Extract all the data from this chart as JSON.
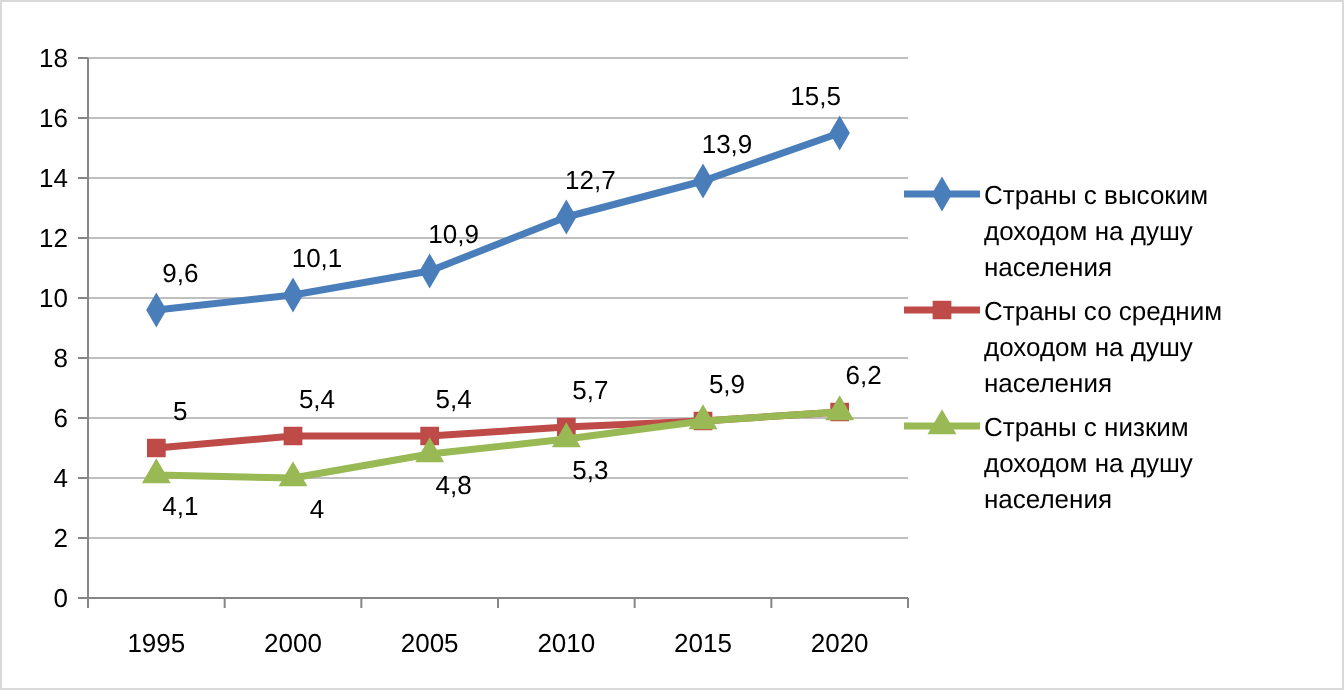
{
  "chart_data": {
    "type": "line",
    "categories": [
      "1995",
      "2000",
      "2005",
      "2010",
      "2015",
      "2020"
    ],
    "ylim": [
      0,
      18
    ],
    "yticks": [
      0,
      2,
      4,
      6,
      8,
      10,
      12,
      14,
      16,
      18
    ],
    "grid": "y",
    "legend": "right",
    "line_style": "solid",
    "series": [
      {
        "name": "Страны с высоким доходом на душу населения",
        "color": "#4a7ebb",
        "marker": "diamond",
        "values": [
          9.6,
          10.1,
          10.9,
          12.7,
          13.9,
          15.5
        ],
        "value_labels": [
          "9,6",
          "10,1",
          "10,9",
          "12,7",
          "13,9",
          "15,5"
        ]
      },
      {
        "name": "Страны со средним доходом на душу населения",
        "color": "#be4b48",
        "marker": "square",
        "values": [
          5,
          5.4,
          5.4,
          5.7,
          5.9,
          6.2
        ],
        "value_labels": [
          "5",
          "5,4",
          "5,4",
          "5,7",
          "5,9",
          "6,2"
        ]
      },
      {
        "name": "Страны с низким доходом на душу населения",
        "color": "#98b954",
        "marker": "triangle",
        "values": [
          4.1,
          4,
          4.8,
          5.3,
          5.9,
          6.2
        ],
        "value_labels": [
          "4,1",
          "4",
          "4,8",
          "5,3",
          null,
          null
        ]
      }
    ]
  }
}
